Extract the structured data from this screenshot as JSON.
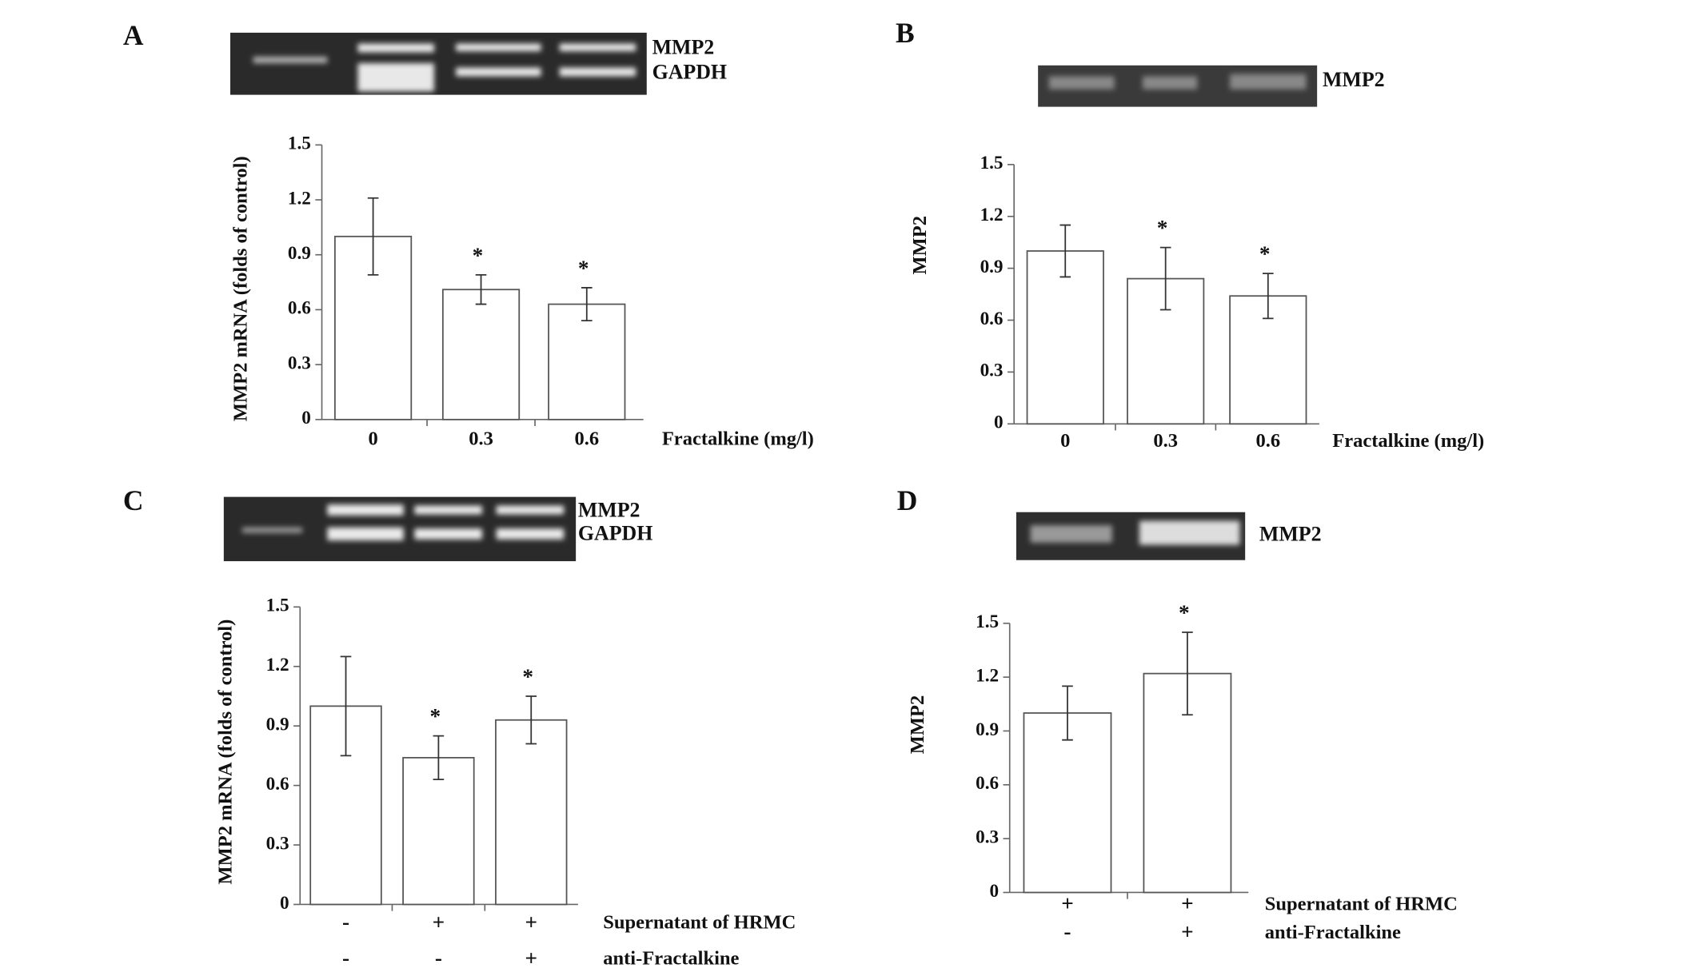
{
  "chart_data": [
    {
      "type": "bar",
      "panel": "A",
      "blot_labels": [
        "MMP2",
        "GAPDH"
      ],
      "ylabel": "MMP2 mRNA (folds of control)",
      "xlabel": "Fractalkine (mg/l)",
      "categories": [
        "0",
        "0.3",
        "0.6"
      ],
      "values": [
        1.0,
        0.71,
        0.63
      ],
      "errors": [
        0.21,
        0.08,
        0.09
      ],
      "annotations": [
        null,
        "*",
        "*"
      ],
      "ylim": [
        0,
        1.5
      ],
      "yticks": [
        0,
        0.3,
        0.6,
        0.9,
        1.2,
        1.5
      ],
      "color": "#ffffff"
    },
    {
      "type": "bar",
      "panel": "B",
      "blot_labels": [
        "MMP2"
      ],
      "ylabel": "MMP2",
      "xlabel": "Fractalkine (mg/l)",
      "categories": [
        "0",
        "0.3",
        "0.6"
      ],
      "values": [
        1.0,
        0.84,
        0.74
      ],
      "errors": [
        0.15,
        0.18,
        0.13
      ],
      "annotations": [
        null,
        "*",
        "*"
      ],
      "ylim": [
        0,
        1.5
      ],
      "yticks": [
        0,
        0.3,
        0.6,
        0.9,
        1.2,
        1.5
      ],
      "color": "#ffffff"
    },
    {
      "type": "bar",
      "panel": "C",
      "blot_labels": [
        "MMP2",
        "GAPDH"
      ],
      "ylabel": "MMP2 mRNA (folds of control)",
      "category_rows": [
        {
          "label": "Supernatant of HRMC",
          "values": [
            "-",
            "+",
            "+"
          ]
        },
        {
          "label": "anti-Fractalkine",
          "values": [
            "-",
            "-",
            "+"
          ]
        }
      ],
      "values": [
        1.0,
        0.74,
        0.93
      ],
      "errors": [
        0.25,
        0.11,
        0.12
      ],
      "annotations": [
        null,
        "*",
        "*"
      ],
      "ylim": [
        0,
        1.5
      ],
      "yticks": [
        0,
        0.3,
        0.6,
        0.9,
        1.2,
        1.5
      ],
      "color": "#ffffff"
    },
    {
      "type": "bar",
      "panel": "D",
      "blot_labels": [
        "MMP2"
      ],
      "ylabel": "MMP2",
      "category_rows": [
        {
          "label": "Supernatant of HRMC",
          "values": [
            "+",
            "+"
          ]
        },
        {
          "label": "anti-Fractalkine",
          "values": [
            "-",
            "+"
          ]
        }
      ],
      "values": [
        1.0,
        1.22
      ],
      "errors": [
        0.15,
        0.23
      ],
      "annotations": [
        null,
        "*"
      ],
      "ylim": [
        0,
        1.5
      ],
      "yticks": [
        0,
        0.3,
        0.6,
        0.9,
        1.2,
        1.5
      ],
      "color": "#ffffff"
    }
  ]
}
